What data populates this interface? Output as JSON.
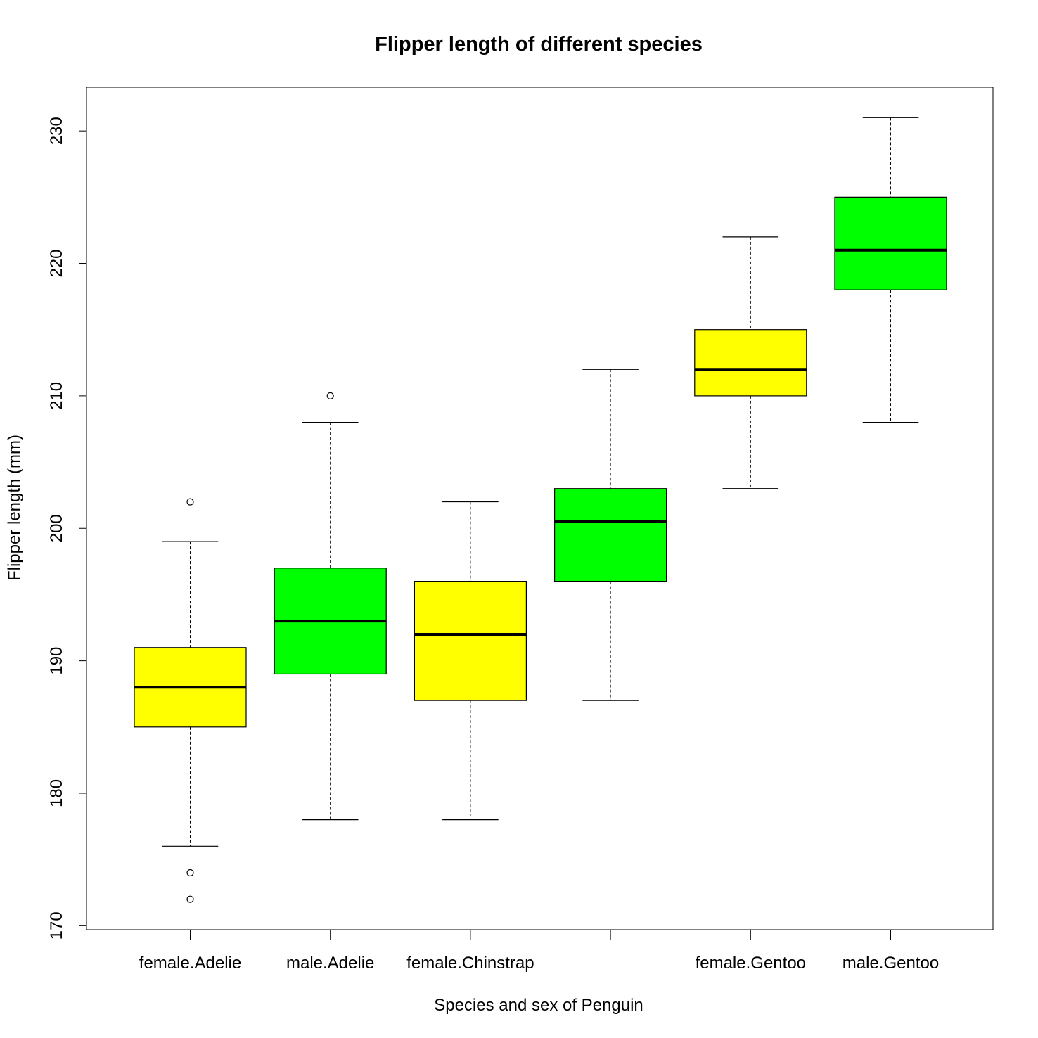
{
  "chart_data": {
    "type": "boxplot",
    "title": "Flipper length of different species",
    "xlabel": "Species and sex of Penguin",
    "ylabel": "Flipper length (mm)",
    "ylim": [
      169.7,
      233.3
    ],
    "yticks": [
      170,
      180,
      190,
      200,
      210,
      220,
      230
    ],
    "grid": false,
    "legend": "none",
    "categories": [
      "female.Adelie",
      "male.Adelie",
      "female.Chinstrap",
      "",
      "female.Gentoo",
      "male.Gentoo"
    ],
    "boxes": [
      {
        "category": "female.Adelie",
        "min": 176,
        "q1": 185,
        "median": 188,
        "q3": 191,
        "max": 199,
        "outliers": [
          202,
          174,
          172
        ],
        "color": "#ffff00"
      },
      {
        "category": "male.Adelie",
        "min": 178,
        "q1": 189,
        "median": 193,
        "q3": 197,
        "max": 208,
        "outliers": [
          210
        ],
        "color": "#00ff00"
      },
      {
        "category": "female.Chinstrap",
        "min": 178,
        "q1": 187,
        "median": 192,
        "q3": 196,
        "max": 202,
        "outliers": [],
        "color": "#ffff00"
      },
      {
        "category": "",
        "min": 187,
        "q1": 196,
        "median": 200.5,
        "q3": 203,
        "max": 212,
        "outliers": [],
        "color": "#00ff00"
      },
      {
        "category": "female.Gentoo",
        "min": 203,
        "q1": 210,
        "median": 212,
        "q3": 215,
        "max": 222,
        "outliers": [],
        "color": "#ffff00"
      },
      {
        "category": "male.Gentoo",
        "min": 208,
        "q1": 218,
        "median": 221,
        "q3": 225,
        "max": 231,
        "outliers": [],
        "color": "#00ff00"
      }
    ]
  }
}
